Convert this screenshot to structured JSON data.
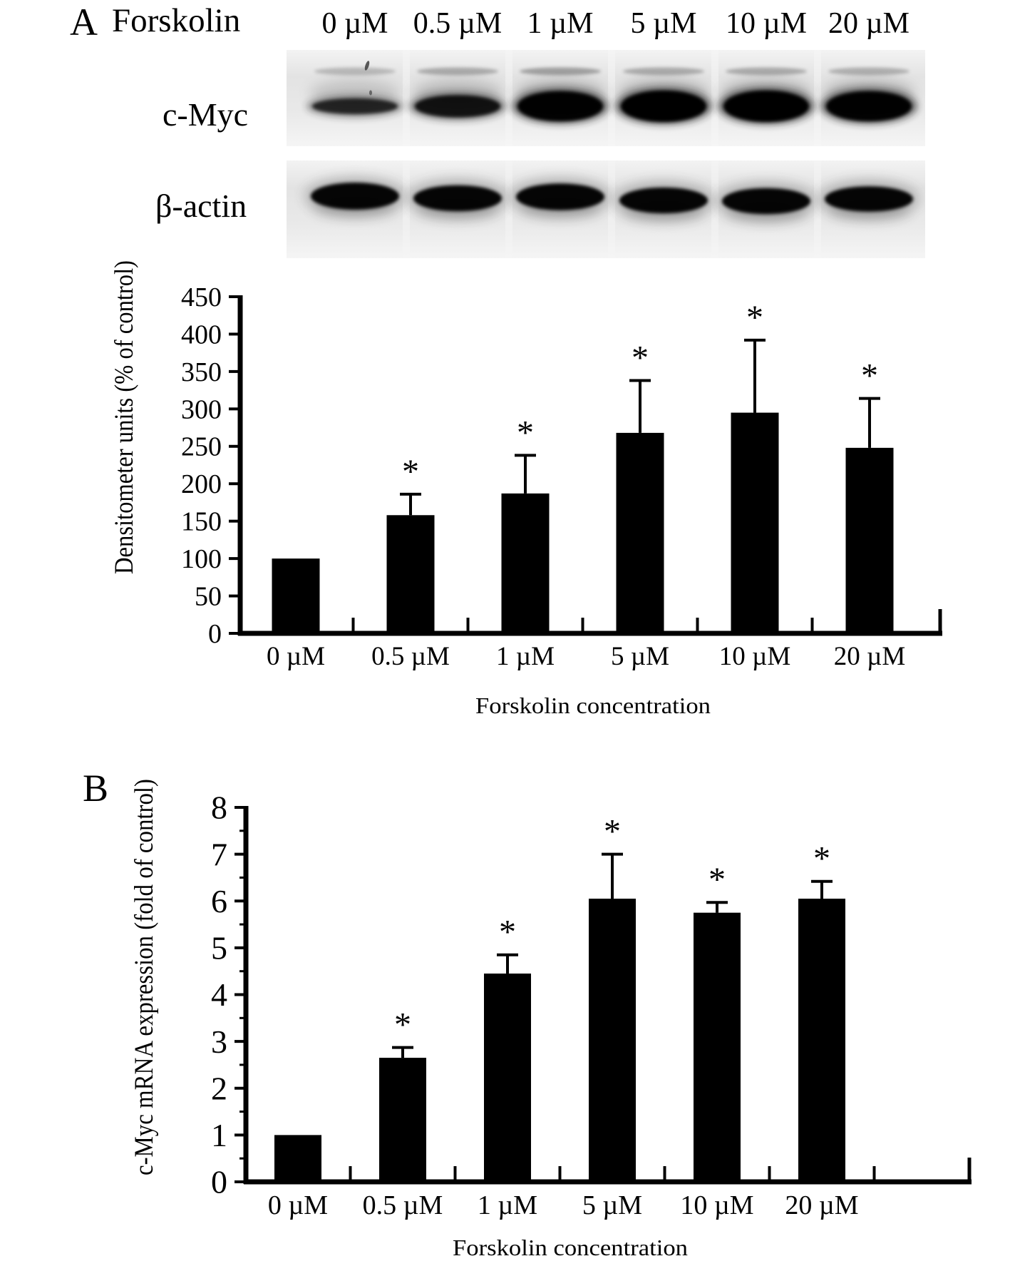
{
  "figure": {
    "background": "#ffffff",
    "ink": "#000000"
  },
  "panel_a": {
    "label": "A",
    "treatment": "Forskolin",
    "lane_labels": [
      "0 µM",
      "0.5 µM",
      "1 µM",
      "5 µM",
      "10 µM",
      "20 µM"
    ],
    "blot": {
      "rows": [
        {
          "protein": "c-Myc",
          "faint_band_intensities": [
            0.45,
            0.6,
            0.7,
            0.6,
            0.6,
            0.55
          ],
          "main_band_intensities": [
            0.35,
            0.62,
            0.95,
            1.0,
            1.0,
            0.95
          ]
        },
        {
          "protein": "β-actin",
          "main_band_intensities": [
            1.0,
            0.92,
            0.97,
            0.9,
            0.92,
            0.86
          ]
        }
      ]
    }
  },
  "panel_b": {
    "label": "B"
  },
  "chart_data": [
    {
      "type": "bar",
      "panel": "A",
      "title": "",
      "categories": [
        "0 µM",
        "0.5 µM",
        "1 µM",
        "5 µM",
        "10 µM",
        "20 µM"
      ],
      "values": [
        100,
        158,
        187,
        268,
        295,
        248
      ],
      "errors_plus": [
        0,
        28,
        51,
        70,
        97,
        66
      ],
      "significance": [
        "",
        "*",
        "*",
        "*",
        "*",
        "*"
      ],
      "ylabel": "Densitometer units (% of control)",
      "xlabel": "Forskolin concentration",
      "ylim": [
        0,
        450
      ],
      "yticks": [
        0,
        50,
        100,
        150,
        200,
        250,
        300,
        350,
        400,
        450
      ],
      "grid": false,
      "legend": null,
      "bar_color": "#000000"
    },
    {
      "type": "bar",
      "panel": "B",
      "title": "",
      "categories": [
        "0 µM",
        "0.5 µM",
        "1 µM",
        "5 µM",
        "10 µM",
        "20 µM"
      ],
      "values": [
        1.0,
        2.65,
        4.45,
        6.05,
        5.75,
        6.05
      ],
      "errors_plus": [
        0,
        0.22,
        0.4,
        0.95,
        0.22,
        0.37
      ],
      "significance": [
        "",
        "*",
        "*",
        "*",
        "*",
        "*"
      ],
      "ylabel": "c-Myc mRNA expression (fold of control)",
      "xlabel": "Forskolin concentration",
      "ylim": [
        0,
        8
      ],
      "yticks": [
        0,
        1,
        2,
        3,
        4,
        5,
        6,
        7,
        8
      ],
      "minor_tick_step": 0.5,
      "grid": false,
      "legend": null,
      "bar_color": "#000000"
    }
  ]
}
